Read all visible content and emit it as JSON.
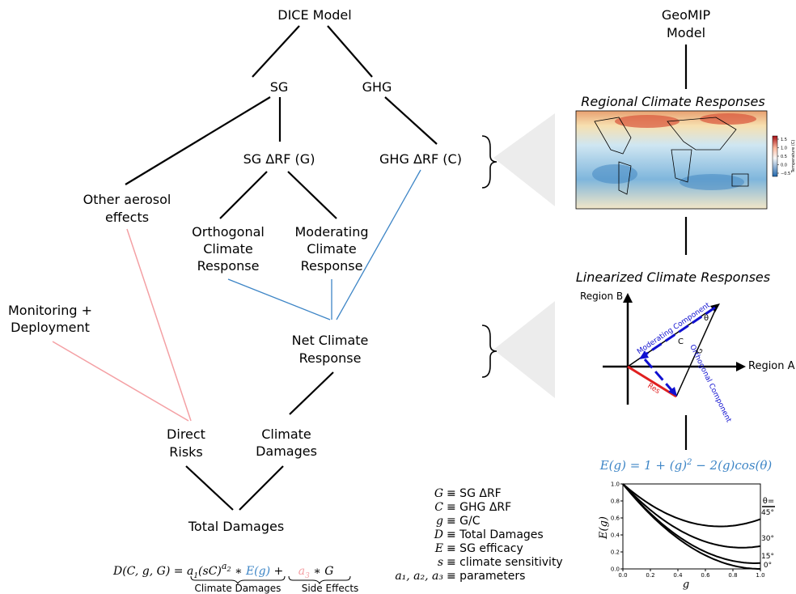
{
  "nodes": [
    {
      "lines": [
        "DICE Model"
      ]
    },
    {
      "lines": [
        "SG"
      ]
    },
    {
      "lines": [
        "GHG"
      ]
    },
    {
      "lines": [
        "SG ΔRF (G)"
      ]
    },
    {
      "lines": [
        "GHG ΔRF (C)"
      ]
    },
    {
      "lines": [
        "Other aerosol",
        "effects"
      ]
    },
    {
      "lines": [
        "Orthogonal",
        "Climate",
        "Response"
      ]
    },
    {
      "lines": [
        "Moderating",
        "Climate",
        "Response"
      ]
    },
    {
      "lines": [
        "Monitoring +",
        "Deployment"
      ]
    },
    {
      "lines": [
        "Net Climate",
        "Response"
      ]
    },
    {
      "lines": [
        "Direct",
        "Risks"
      ]
    },
    {
      "lines": [
        "Climate",
        "Damages"
      ]
    },
    {
      "lines": [
        "Total Damages"
      ]
    },
    {
      "lines": [
        "GeoMIP",
        "Model"
      ]
    }
  ],
  "equation": {
    "parts": [
      "D(C, g, G) = ",
      "a",
      "1",
      "(sC)",
      "a",
      "2",
      " ∗ ",
      "E(g)",
      " + ",
      "a",
      "3",
      " ∗ G"
    ],
    "brace_labels": [
      "Climate Damages",
      "Side Effects"
    ]
  },
  "definitions": [
    {
      "symbol": "G",
      "def": "≡ SG ΔRF"
    },
    {
      "symbol": "C",
      "def": "≡ GHG ΔRF"
    },
    {
      "symbol": "g",
      "def": "≡ G/C"
    },
    {
      "symbol": "D",
      "def": "≡  Total Damages"
    },
    {
      "symbol": "E",
      "def": "≡  SG efficacy"
    },
    {
      "symbol": "s",
      "def": "≡  climate sensitivity"
    },
    {
      "symbol": "a₁, a₂, a₃",
      "def": "≡  parameters"
    }
  ],
  "regional": {
    "title": "Regional Climate Responses",
    "colorbar_label": "Temperature (C)",
    "colorbar_ticks": [
      1.5,
      {
        "value": 1,
        "label": "1.0"
      },
      0.5,
      {
        "value": 0,
        "label": "0.0"
      },
      {
        "value": -0.5,
        "label": "−0.5"
      }
    ]
  },
  "linearized": {
    "title": "Linearized Climate Responses",
    "axis_y": "Region B",
    "axis_x": "Region A",
    "labels": {
      "moderating": "Moderating Component",
      "orthogonal": "Orthogonal Component",
      "c": "C",
      "g": "G",
      "theta": "θ",
      "res": "Res"
    }
  },
  "efficacy": {
    "formula": [
      "E(g) = 1 + (g)",
      "2",
      " − 2(g)cos(θ)"
    ],
    "x_label": "g",
    "y_label": "E(g)",
    "legend_title": "θ=",
    "xticks": [
      {
        "value": 0,
        "label": "0.0"
      },
      0.2,
      0.4,
      0.6,
      0.8,
      {
        "value": 1,
        "label": "1.0"
      }
    ],
    "yticks": [
      {
        "value": 0,
        "label": "0.0"
      },
      0.2,
      0.4,
      0.6,
      0.8,
      {
        "value": 1,
        "label": "1.0"
      }
    ],
    "curves": [
      {
        "value": 45,
        "label": "45°"
      },
      {
        "value": 30,
        "label": "30°"
      },
      {
        "value": 15,
        "label": "15°"
      },
      {
        "value": 0,
        "label": "0°"
      }
    ]
  }
}
